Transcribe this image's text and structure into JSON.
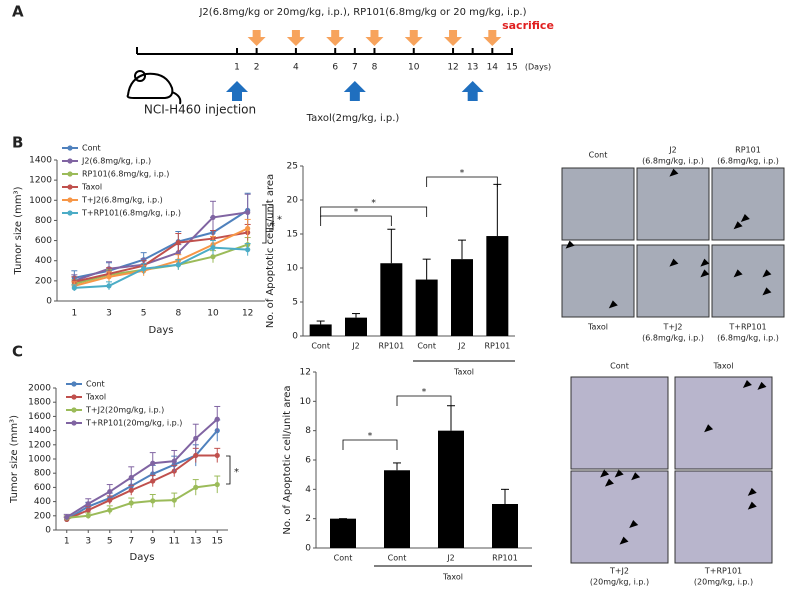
{
  "panel_labels": [
    "A",
    "B",
    "C"
  ],
  "timeline": {
    "drug_label": "J2(6.8mg/kg or 20mg/kg, i.p.), RP101(6.8mg/kg or 20 mg/kg, i.p.)",
    "sacrifice_label": "sacrifice",
    "days": [
      1,
      2,
      4,
      6,
      7,
      8,
      10,
      12,
      13,
      14,
      15
    ],
    "days_unit": "(Days)",
    "drug_days": [
      2,
      4,
      6,
      8,
      10,
      12,
      14
    ],
    "taxol_days": [
      1,
      7,
      13
    ],
    "taxol_label": "Taxol(2mg/kg, i.p.)",
    "injection_label": "NCI-H460 injection"
  },
  "chart_data": [
    {
      "type": "line",
      "xlabel": "Days",
      "ylabel": "Tumor size (mm³)",
      "categories": [
        "1",
        "3",
        "5",
        "8",
        "10",
        "12"
      ],
      "ylim": [
        0,
        1400
      ],
      "yticks": [
        0,
        200,
        400,
        600,
        800,
        1000,
        1200,
        1400
      ],
      "annotations": [
        "*",
        "*"
      ],
      "series": [
        {
          "name": "Cont",
          "color": "#4f81bd",
          "values": [
            230,
            300,
            410,
            590,
            680,
            900
          ],
          "errors": [
            70,
            80,
            70,
            100,
            150,
            170
          ]
        },
        {
          "name": "J2(6.8mg/kg, i.p.)",
          "color": "#8064a2",
          "values": [
            200,
            320,
            360,
            480,
            830,
            880
          ],
          "errors": [
            60,
            70,
            60,
            80,
            160,
            180
          ]
        },
        {
          "name": "RP101(6.8mg/kg, i.p.)",
          "color": "#9bbb59",
          "values": [
            170,
            260,
            310,
            360,
            440,
            560
          ],
          "errors": [
            40,
            50,
            40,
            50,
            60,
            70
          ]
        },
        {
          "name": "Taxol",
          "color": "#c0504d",
          "values": [
            190,
            270,
            350,
            580,
            620,
            680
          ],
          "errors": [
            50,
            60,
            50,
            90,
            80,
            80
          ]
        },
        {
          "name": "T+J2(6.8mg/kg, i.p.)",
          "color": "#f79646",
          "values": [
            150,
            240,
            300,
            400,
            560,
            720
          ],
          "errors": [
            40,
            50,
            50,
            60,
            80,
            90
          ]
        },
        {
          "name": "T+RP101(6.8mg/kg, i.p.)",
          "color": "#4bacc6",
          "values": [
            130,
            150,
            320,
            360,
            530,
            510
          ],
          "errors": [
            30,
            40,
            50,
            50,
            70,
            60
          ]
        }
      ]
    },
    {
      "type": "bar",
      "ylabel": "No. of Apoptotic cells/unit area",
      "categories": [
        "Cont",
        "J2",
        "RP101",
        "Cont",
        "J2",
        "RP101"
      ],
      "group_label": "Taxol",
      "values": [
        1.7,
        2.7,
        10.7,
        8.3,
        11.3,
        14.7
      ],
      "errors": [
        0.5,
        0.6,
        5.0,
        3.0,
        2.8,
        7.6
      ],
      "color": "#000000",
      "ylim": [
        0,
        25
      ],
      "yticks": [
        0,
        5,
        10,
        15,
        20,
        25
      ],
      "annotations": [
        "*",
        "*",
        "*"
      ]
    },
    {
      "type": "line",
      "xlabel": "Days",
      "ylabel": "Tumor size (mm³)",
      "x": [
        1,
        3,
        5,
        7,
        9,
        11,
        13,
        15
      ],
      "xlim": [
        0,
        16
      ],
      "xticks": [
        1,
        3,
        5,
        7,
        9,
        11,
        13,
        15
      ],
      "ylim": [
        0,
        2000
      ],
      "yticks": [
        0,
        200,
        400,
        600,
        800,
        1000,
        1200,
        1400,
        1600,
        1800,
        2000
      ],
      "annotations": [
        "*"
      ],
      "series": [
        {
          "name": "Cont",
          "color": "#4f81bd",
          "values": [
            150,
            330,
            450,
            620,
            790,
            920,
            1050,
            1400
          ],
          "errors": [
            30,
            60,
            70,
            90,
            120,
            120,
            150,
            150
          ]
        },
        {
          "name": "Taxol",
          "color": "#c0504d",
          "values": [
            150,
            280,
            420,
            560,
            690,
            830,
            1050,
            1050
          ],
          "errors": [
            30,
            50,
            60,
            70,
            80,
            80,
            100,
            100
          ]
        },
        {
          "name": "T+J2(20mg/kg, i.p.)",
          "color": "#9bbb59",
          "values": [
            170,
            200,
            280,
            380,
            410,
            420,
            600,
            640
          ],
          "errors": [
            30,
            40,
            60,
            70,
            90,
            100,
            110,
            120
          ]
        },
        {
          "name": "T+RP101(20mg/kg, i.p.)",
          "color": "#8064a2",
          "values": [
            180,
            370,
            540,
            740,
            940,
            970,
            1290,
            1560
          ],
          "errors": [
            40,
            70,
            100,
            150,
            150,
            150,
            200,
            180
          ]
        }
      ]
    },
    {
      "type": "bar",
      "ylabel": "No. of Apoptotic cell/unit area",
      "categories": [
        "Cont",
        "Cont",
        "J2",
        "RP101"
      ],
      "group_label": "Taxol",
      "values": [
        2,
        5.3,
        8,
        3
      ],
      "errors": [
        0,
        0.5,
        1.7,
        1.0
      ],
      "color": "#000000",
      "ylim": [
        0,
        12
      ],
      "yticks": [
        0,
        2,
        4,
        6,
        8,
        10,
        12
      ],
      "annotations": [
        "*",
        "*"
      ]
    }
  ],
  "micrographs": [
    [
      [
        "Cont"
      ],
      [
        "J2",
        "(6.8mg/kg, i.p.)"
      ],
      [
        "RP101",
        "(6.8mg/kg, i.p.)"
      ],
      [
        "Taxol"
      ],
      [
        "T+J2",
        "(6.8mg/kg, i.p.)"
      ],
      [
        "T+RP101",
        "(6.8mg/kg, i.p.)"
      ]
    ],
    [
      [
        "Cont"
      ],
      [
        "Taxol"
      ],
      [
        "T+J2",
        "(20mg/kg, i.p.)"
      ],
      [
        "T+RP101",
        "(20mg/kg, i.p.)"
      ]
    ]
  ]
}
